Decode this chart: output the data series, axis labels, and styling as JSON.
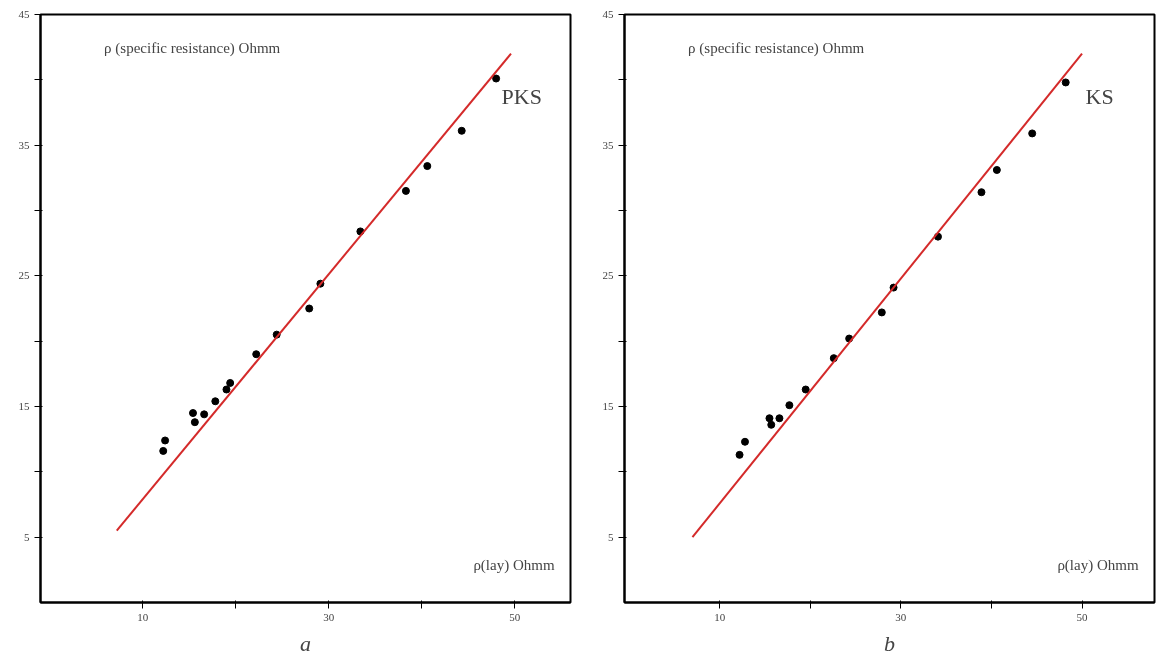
{
  "chart_data": [
    {
      "type": "scatter",
      "title": "a",
      "ylabel": "ρ (specific resistance) Ohmm",
      "xlabel": "ρ(lay) Ohmm",
      "annotations": [
        "PKS"
      ],
      "xlim": [
        -1,
        56
      ],
      "ylim": [
        0,
        45
      ],
      "xticks": [
        {
          "value": 10,
          "label": "10"
        },
        {
          "value": 20,
          "label": null
        },
        {
          "value": 30,
          "label": "30"
        },
        {
          "value": 40,
          "label": null
        },
        {
          "value": 50,
          "label": "50"
        }
      ],
      "yticks": [
        {
          "value": 5,
          "label": "5"
        },
        {
          "value": 10,
          "label": null
        },
        {
          "value": 15,
          "label": "15"
        },
        {
          "value": 20,
          "label": null
        },
        {
          "value": 25,
          "label": "25"
        },
        {
          "value": 30,
          "label": null
        },
        {
          "value": 35,
          "label": "35"
        },
        {
          "value": 40,
          "label": null
        },
        {
          "value": 45,
          "label": "45"
        }
      ],
      "grid": false,
      "marker": "circle",
      "series": [
        {
          "color": "#000000",
          "x": [
            12.2,
            12.4,
            15.4,
            15.6,
            16.6,
            17.8,
            19.0,
            19.4,
            22.2,
            24.4,
            27.9,
            29.1,
            33.4,
            38.3,
            40.6,
            44.3,
            48.0
          ],
          "values": [
            11.6,
            12.4,
            14.5,
            13.8,
            14.4,
            15.4,
            16.3,
            16.8,
            19.0,
            20.5,
            22.5,
            24.4,
            28.4,
            31.5,
            33.4,
            36.1,
            40.1
          ]
        },
        {
          "type": "line",
          "marker": "none",
          "color": "#d42a2a",
          "x": [
            7.2,
            49.6
          ],
          "values": [
            5.5,
            42.0
          ]
        }
      ]
    },
    {
      "type": "scatter",
      "title": "b",
      "ylabel": "ρ (specific resistance) Ohmm",
      "xlabel": "ρ(lay) Ohmm",
      "annotations": [
        "KS"
      ],
      "xlim": [
        -0.5,
        58
      ],
      "ylim": [
        0,
        45
      ],
      "xticks": [
        {
          "value": 10,
          "label": "10"
        },
        {
          "value": 20,
          "label": null
        },
        {
          "value": 30,
          "label": "30"
        },
        {
          "value": 40,
          "label": null
        },
        {
          "value": 50,
          "label": "50"
        }
      ],
      "yticks": [
        {
          "value": 5,
          "label": "5"
        },
        {
          "value": 10,
          "label": null
        },
        {
          "value": 15,
          "label": "15"
        },
        {
          "value": 20,
          "label": null
        },
        {
          "value": 25,
          "label": "25"
        },
        {
          "value": 30,
          "label": null
        },
        {
          "value": 35,
          "label": "35"
        },
        {
          "value": 40,
          "label": null
        },
        {
          "value": 45,
          "label": "45"
        }
      ],
      "grid": false,
      "marker": "circle",
      "series": [
        {
          "color": "#000000",
          "x": [
            12.2,
            12.8,
            15.5,
            15.7,
            16.6,
            17.7,
            19.5,
            22.6,
            24.3,
            27.9,
            29.2,
            34.1,
            38.9,
            40.6,
            44.5,
            48.2
          ],
          "values": [
            11.3,
            12.3,
            14.1,
            13.6,
            14.1,
            15.1,
            16.3,
            18.7,
            20.2,
            22.2,
            24.1,
            28.0,
            31.4,
            33.1,
            35.9,
            39.8
          ]
        },
        {
          "type": "line",
          "marker": "none",
          "color": "#d42a2a",
          "x": [
            7.0,
            50.0
          ],
          "values": [
            5.0,
            42.0
          ]
        }
      ]
    }
  ]
}
